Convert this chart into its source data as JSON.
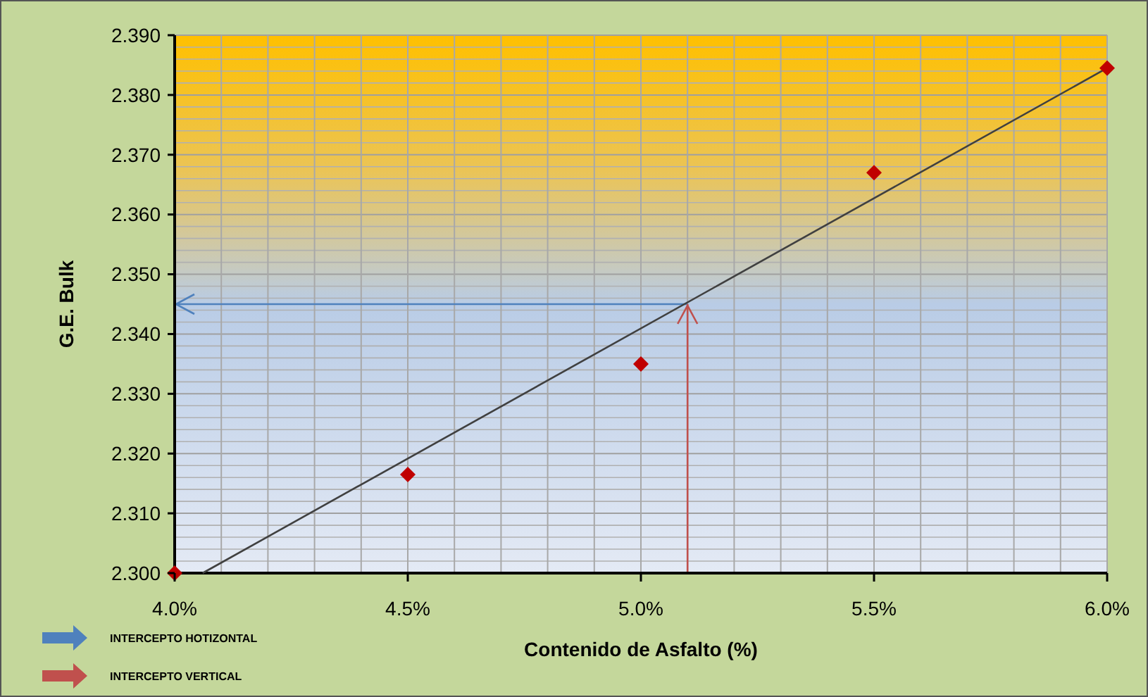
{
  "chart_data": {
    "type": "scatter",
    "xlabel": "Contenido de Asfalto (%)",
    "ylabel": "G.E. Bulk",
    "xlim": [
      4.0,
      6.0
    ],
    "ylim": [
      2.3,
      2.39
    ],
    "xticks": [
      {
        "value": 4.0,
        "label": "4.0%"
      },
      {
        "value": 4.1,
        "label": null
      },
      {
        "value": 4.2,
        "label": null
      },
      {
        "value": 4.3,
        "label": null
      },
      {
        "value": 4.4,
        "label": null
      },
      {
        "value": 4.5,
        "label": "4.5%"
      },
      {
        "value": 4.6,
        "label": null
      },
      {
        "value": 4.7,
        "label": null
      },
      {
        "value": 4.8,
        "label": null
      },
      {
        "value": 4.9,
        "label": null
      },
      {
        "value": 5.0,
        "label": "5.0%"
      },
      {
        "value": 5.1,
        "label": null
      },
      {
        "value": 5.2,
        "label": null
      },
      {
        "value": 5.3,
        "label": null
      },
      {
        "value": 5.4,
        "label": null
      },
      {
        "value": 5.5,
        "label": "5.5%"
      },
      {
        "value": 5.6,
        "label": null
      },
      {
        "value": 5.7,
        "label": null
      },
      {
        "value": 5.8,
        "label": null
      },
      {
        "value": 5.9,
        "label": null
      },
      {
        "value": 6.0,
        "label": "6.0%"
      }
    ],
    "yticks": [
      {
        "value": 2.3,
        "label": "2.300"
      },
      {
        "value": 2.31,
        "label": "2.310"
      },
      {
        "value": 2.32,
        "label": "2.320"
      },
      {
        "value": 2.33,
        "label": "2.330"
      },
      {
        "value": 2.34,
        "label": "2.340"
      },
      {
        "value": 2.35,
        "label": "2.350"
      },
      {
        "value": 2.36,
        "label": "2.360"
      },
      {
        "value": 2.37,
        "label": "2.370"
      },
      {
        "value": 2.38,
        "label": "2.380"
      },
      {
        "value": 2.39,
        "label": "2.390"
      }
    ],
    "grid": true,
    "legend": "bottom left",
    "series": [
      {
        "marker": "diamond",
        "color": "#c00000",
        "x": [
          4.0,
          4.5,
          5.0,
          5.5,
          6.0
        ],
        "values": [
          2.3,
          2.3165,
          2.335,
          2.367,
          2.3845
        ]
      },
      {
        "type": "line",
        "color": "#404040",
        "x": [
          4.06,
          6.0
        ],
        "values": [
          2.3,
          2.3845
        ]
      }
    ],
    "ref_lines": [
      {
        "axis": "y",
        "value": 2.345,
        "label": "INTERCEPTO HOTIZONTAL",
        "color": "#4f81bd"
      },
      {
        "axis": "x",
        "value": 5.1,
        "label": "INTERCEPTO VERTICAL",
        "color": "#c0504d"
      }
    ]
  }
}
